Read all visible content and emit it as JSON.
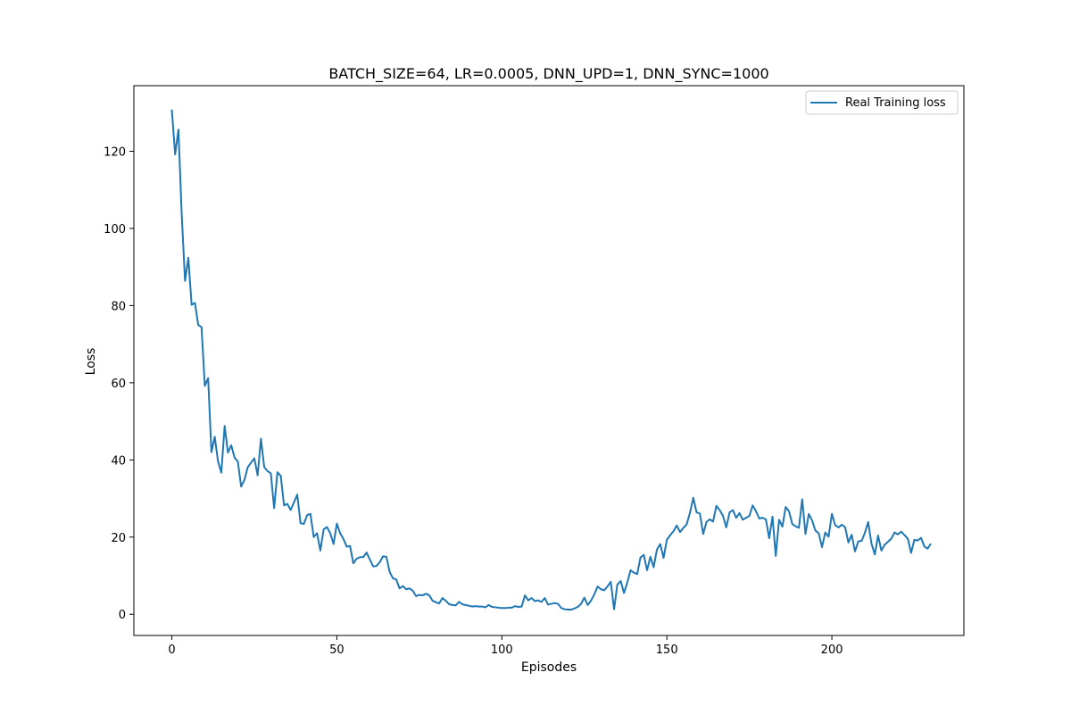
{
  "chart_data": {
    "type": "line",
    "title": "BATCH_SIZE=64, LR=0.0005, DNN_UPD=1, DNN_SYNC=1000",
    "xlabel": "Episodes",
    "ylabel": "Loss",
    "xlim": [
      -11.5,
      240
    ],
    "ylim": [
      -5.5,
      137
    ],
    "xticks": [
      0,
      50,
      100,
      150,
      200
    ],
    "yticks": [
      0,
      20,
      40,
      60,
      80,
      100,
      120
    ],
    "grid": false,
    "legend_position": "upper right",
    "series": [
      {
        "name": "Real Training loss",
        "color": "#1f77b4",
        "x_start": 0,
        "x_step": 1,
        "values": [
          130.8,
          119.2,
          125.6,
          103.5,
          86.4,
          92.4,
          80.2,
          80.7,
          75.0,
          74.4,
          59.2,
          61.2,
          42.0,
          46.0,
          39.6,
          36.7,
          48.8,
          41.9,
          43.8,
          40.6,
          39.6,
          33.1,
          34.8,
          38.1,
          39.3,
          40.4,
          36.0,
          45.5,
          38.1,
          37.1,
          36.5,
          27.5,
          36.8,
          35.9,
          28.2,
          28.6,
          27.0,
          29.0,
          31.0,
          23.6,
          23.4,
          25.7,
          26.0,
          20.0,
          21.0,
          16.5,
          22.0,
          22.6,
          21.0,
          18.2,
          23.5,
          21.0,
          19.5,
          17.5,
          17.7,
          13.2,
          14.4,
          14.8,
          14.8,
          16.0,
          14.2,
          12.4,
          12.5,
          13.5,
          15.0,
          14.9,
          11.0,
          9.3,
          9.0,
          6.7,
          7.3,
          6.5,
          6.7,
          6.1,
          4.7,
          5.0,
          4.9,
          5.3,
          4.9,
          3.5,
          3.1,
          2.8,
          4.2,
          3.5,
          2.6,
          2.4,
          2.3,
          3.2,
          2.6,
          2.4,
          2.2,
          2.0,
          2.1,
          2.0,
          2.0,
          1.8,
          2.4,
          1.9,
          1.8,
          1.7,
          1.6,
          1.6,
          1.7,
          1.7,
          2.1,
          1.9,
          2.0,
          4.9,
          3.6,
          4.2,
          3.4,
          3.6,
          3.2,
          4.2,
          2.5,
          2.7,
          2.9,
          2.7,
          1.6,
          1.3,
          1.2,
          1.2,
          1.5,
          1.9,
          2.7,
          4.3,
          2.4,
          3.5,
          5.1,
          7.2,
          6.5,
          6.2,
          7.2,
          8.4,
          1.3,
          7.7,
          8.6,
          5.5,
          8.2,
          11.4,
          10.8,
          10.4,
          14.7,
          15.4,
          11.4,
          14.9,
          12.2,
          16.8,
          18.2,
          14.6,
          19.3,
          20.5,
          21.5,
          23.0,
          21.3,
          22.4,
          23.3,
          26.3,
          30.2,
          26.4,
          26.1,
          20.8,
          23.9,
          24.6,
          24.0,
          28.1,
          27.0,
          25.5,
          22.5,
          26.4,
          27.0,
          25.0,
          26.2,
          24.5,
          25.0,
          25.5,
          28.2,
          26.7,
          24.8,
          25.0,
          24.6,
          19.7,
          25.3,
          15.1,
          24.5,
          22.7,
          27.8,
          26.7,
          23.4,
          22.8,
          22.4,
          29.8,
          20.8,
          26.0,
          24.3,
          21.7,
          21.0,
          17.4,
          21.2,
          20.1,
          26.0,
          23.1,
          22.5,
          23.2,
          22.6,
          18.6,
          20.6,
          16.3,
          18.9,
          19.0,
          21.1,
          23.9,
          18.3,
          15.5,
          20.4,
          16.5,
          18.0,
          18.8,
          19.6,
          21.2,
          20.7,
          21.4,
          20.5,
          19.6,
          15.9,
          19.3,
          19.1,
          19.8,
          17.6,
          17.0,
          18.3
        ]
      }
    ]
  }
}
